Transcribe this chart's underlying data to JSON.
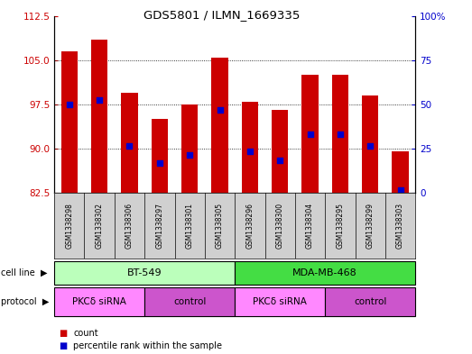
{
  "title": "GDS5801 / ILMN_1669335",
  "samples": [
    "GSM1338298",
    "GSM1338302",
    "GSM1338306",
    "GSM1338297",
    "GSM1338301",
    "GSM1338305",
    "GSM1338296",
    "GSM1338300",
    "GSM1338304",
    "GSM1338295",
    "GSM1338299",
    "GSM1338303"
  ],
  "bar_tops": [
    106.5,
    108.5,
    99.5,
    95.0,
    97.5,
    105.5,
    98.0,
    96.5,
    102.5,
    102.5,
    99.0,
    89.5
  ],
  "blue_dot_y": [
    97.5,
    98.2,
    90.5,
    87.5,
    89.0,
    96.5,
    89.5,
    88.0,
    92.5,
    92.5,
    90.5,
    83.0
  ],
  "baseline": 82.5,
  "ylim_left": [
    82.5,
    112.5
  ],
  "left_yticks": [
    82.5,
    90.0,
    97.5,
    105.0,
    112.5
  ],
  "right_yticks_vals": [
    0,
    25,
    50,
    75,
    100
  ],
  "right_yticks_labels": [
    "0",
    "25",
    "50",
    "75",
    "100%"
  ],
  "bar_color": "#cc0000",
  "dot_color": "#0000cc",
  "cell_line_groups": [
    {
      "label": "BT-549",
      "start": 0,
      "end": 6,
      "color": "#bbffbb"
    },
    {
      "label": "MDA-MB-468",
      "start": 6,
      "end": 12,
      "color": "#44dd44"
    }
  ],
  "protocol_groups": [
    {
      "label": "PKCδ siRNA",
      "start": 0,
      "end": 3,
      "color": "#ff88ff"
    },
    {
      "label": "control",
      "start": 3,
      "end": 6,
      "color": "#cc55cc"
    },
    {
      "label": "PKCδ siRNA",
      "start": 6,
      "end": 9,
      "color": "#ff88ff"
    },
    {
      "label": "control",
      "start": 9,
      "end": 12,
      "color": "#cc55cc"
    }
  ],
  "bg_color": "#ffffff",
  "plot_bg_color": "#ffffff",
  "sample_label_bg": "#d0d0d0",
  "grid_vals": [
    90.0,
    97.5,
    105.0
  ]
}
